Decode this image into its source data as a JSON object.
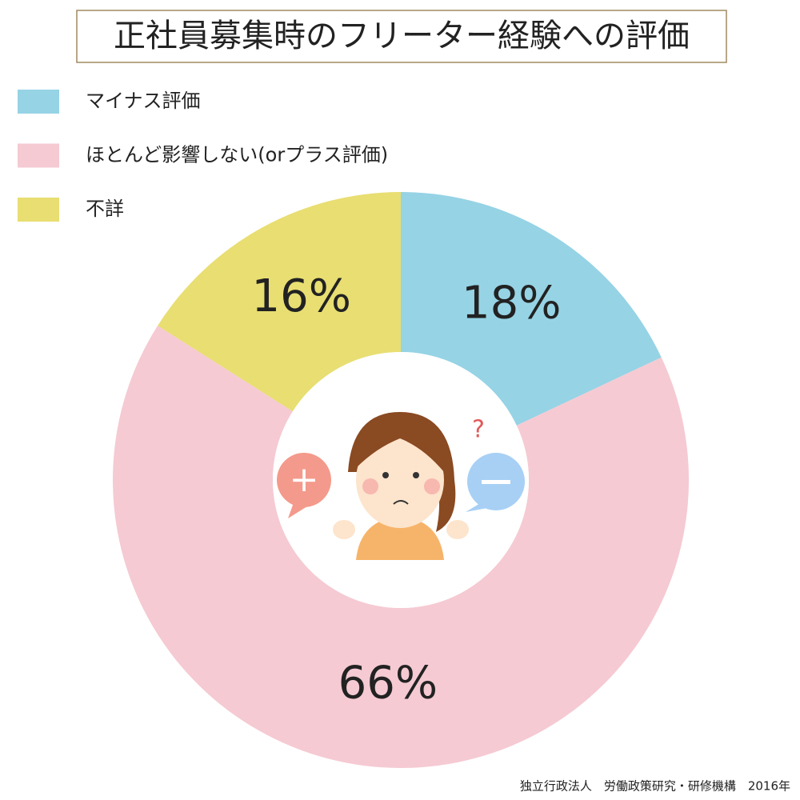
{
  "chart_data": {
    "type": "donut",
    "title": "正社員募集時のフリーター経験への評価",
    "categories": [
      "マイナス評価",
      "ほとんど影響しない(orプラス評価)",
      "不詳"
    ],
    "values": [
      18,
      66,
      16
    ],
    "value_labels": [
      "18%",
      "66%",
      "16%"
    ],
    "colors": [
      "#96d3e5",
      "#f5cad3",
      "#e8de72"
    ],
    "source": "独立行政法人　労働政策研究・研修機構　2016年"
  }
}
